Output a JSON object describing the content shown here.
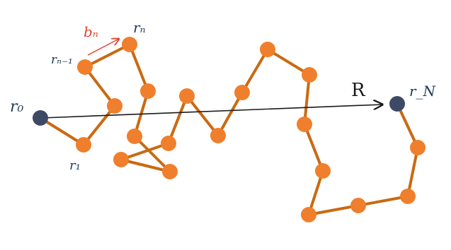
{
  "diagram": {
    "type": "freely-jointed-chain",
    "colors": {
      "bond": "#c96a12",
      "bead": "#ef7f2c",
      "endpoint": "#3d4a66",
      "vector": "#1a1a1a",
      "bond_vector": "#e0452d",
      "label": "#1f3a5a",
      "label_red": "#e0452d"
    },
    "labels": {
      "r0": "r₀",
      "r1": "r₁",
      "rn_minus_1": "rₙ₋₁",
      "rn": "rₙ",
      "rN": "r_N",
      "bn": "bₙ",
      "R": "R"
    }
  }
}
